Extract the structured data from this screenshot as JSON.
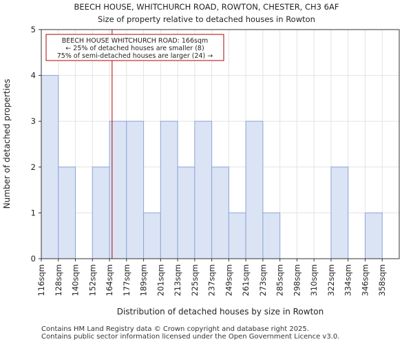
{
  "chart_data": {
    "type": "bar",
    "title": "BEECH HOUSE, WHITCHURCH ROAD, ROWTON, CHESTER, CH3 6AF",
    "subtitle": "Size of property relative to detached houses in Rowton",
    "xlabel": "Distribution of detached houses by size in Rowton",
    "ylabel": "Number of detached properties",
    "categories": [
      "116sqm",
      "128sqm",
      "140sqm",
      "152sqm",
      "164sqm",
      "177sqm",
      "189sqm",
      "201sqm",
      "213sqm",
      "225sqm",
      "237sqm",
      "249sqm",
      "261sqm",
      "273sqm",
      "285sqm",
      "298sqm",
      "310sqm",
      "322sqm",
      "334sqm",
      "346sqm",
      "358sqm"
    ],
    "values": [
      4,
      2,
      0,
      2,
      3,
      3,
      1,
      3,
      2,
      3,
      2,
      1,
      3,
      1,
      0,
      0,
      0,
      2,
      0,
      1,
      0
    ],
    "yticks": [
      0,
      1,
      2,
      3,
      4,
      5
    ],
    "ylim": [
      0,
      5
    ],
    "grid": true,
    "bar_color": "#dbe4f5",
    "bar_edge_color": "#8aa6d6",
    "marker": {
      "value": 166,
      "color": "#b30000",
      "lines": [
        "BEECH HOUSE WHITCHURCH ROAD: 166sqm",
        "← 25% of detached houses are smaller (8)",
        "75% of semi-detached houses are larger (24) →"
      ]
    }
  },
  "footer": {
    "line1": "Contains HM Land Registry data © Crown copyright and database right 2025.",
    "line2": "Contains public sector information licensed under the Open Government Licence v3.0."
  }
}
